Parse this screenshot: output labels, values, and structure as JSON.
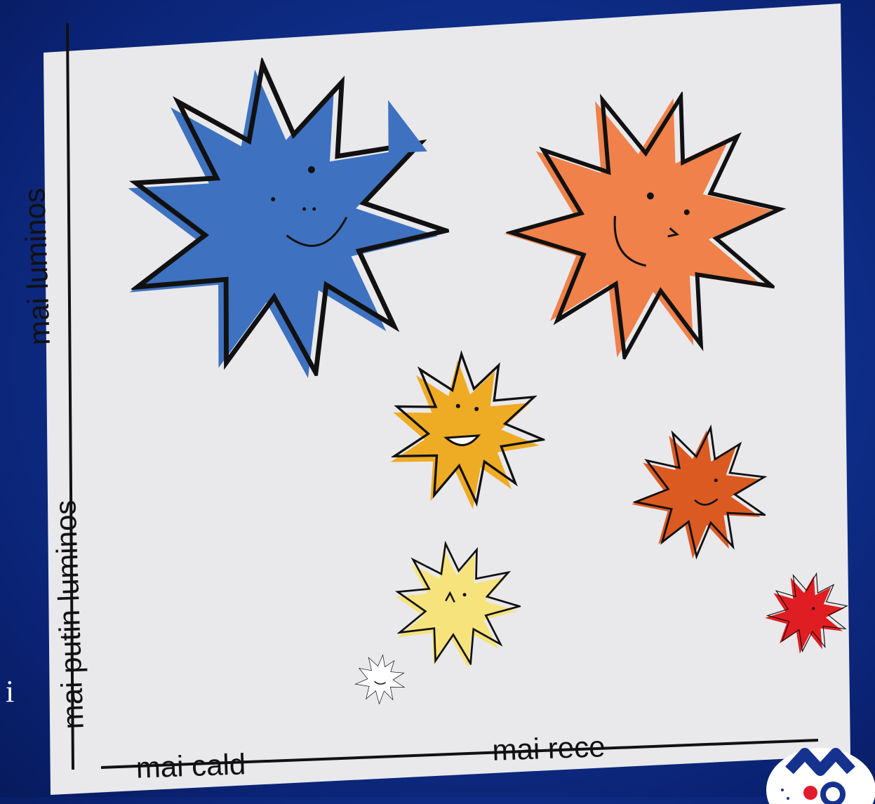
{
  "diagram": {
    "y_axis": {
      "top_label": "mai luminos",
      "bottom_label": "mai putin luminos"
    },
    "x_axis": {
      "left_label": "mai cald",
      "right_label": "mai rece"
    },
    "stars": [
      {
        "name": "blue-star",
        "color": "#3e72c0",
        "mood": "smiling"
      },
      {
        "name": "orange-star",
        "color": "#f0814a",
        "mood": "smiling"
      },
      {
        "name": "amber-star",
        "color": "#eeab24",
        "mood": "open-mouth smile"
      },
      {
        "name": "dark-orange-star",
        "color": "#db5a22",
        "mood": "smiling"
      },
      {
        "name": "pale-yellow-star",
        "color": "#f7e37c",
        "mood": "surprised"
      },
      {
        "name": "white-star",
        "color": "#ffffff",
        "mood": "calm"
      },
      {
        "name": "red-star",
        "color": "#e01d22",
        "mood": "calm"
      }
    ]
  },
  "slide": {
    "text": "i"
  },
  "colors": {
    "background": "#10318f",
    "paper": "#e9e9ec",
    "ink": "#111111",
    "logo_text": "#16328f",
    "logo_star": "#e21b2c"
  }
}
